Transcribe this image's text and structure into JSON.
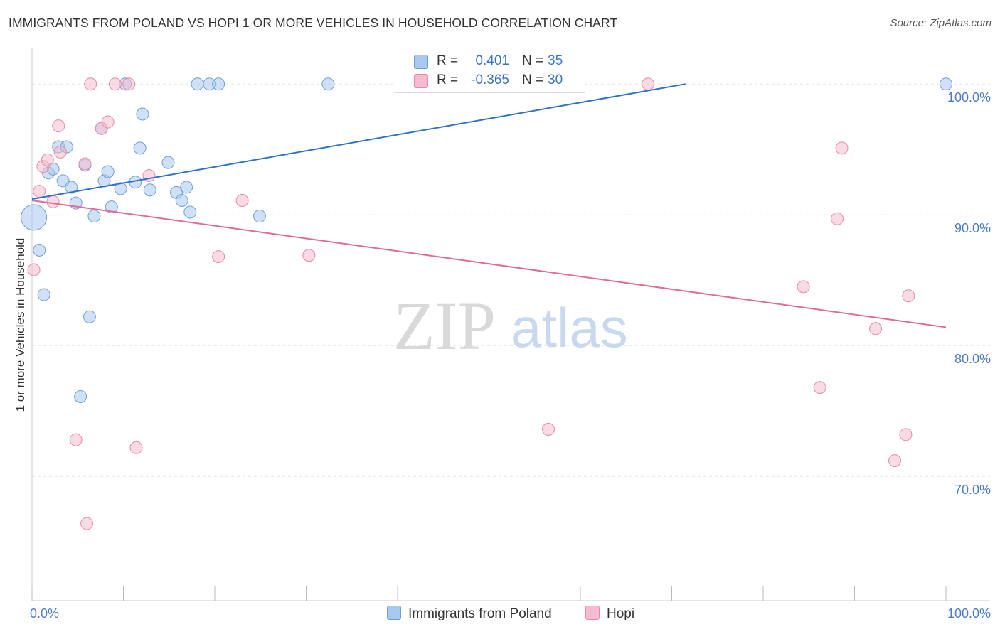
{
  "header": {
    "title": "IMMIGRANTS FROM POLAND VS HOPI 1 OR MORE VEHICLES IN HOUSEHOLD CORRELATION CHART",
    "source": "Source: ZipAtlas.com"
  },
  "legend": {
    "rows": [
      {
        "r_label": "R =",
        "r_value": "0.401",
        "n_label": "N =",
        "n_value": "35"
      },
      {
        "r_label": "R =",
        "r_value": "-0.365",
        "n_label": "N =",
        "n_value": "30"
      }
    ]
  },
  "bottom_legend": [
    "Immigrants from Poland",
    "Hopi"
  ],
  "watermark": {
    "part1": "ZIP",
    "part2": "atlas"
  },
  "colors": {
    "blue_fill": "#a9c8f0",
    "blue_stroke": "#6f9fd8",
    "blue_line": "#2f72c8",
    "pink_fill": "#f6bccd",
    "pink_stroke": "#e88aa7",
    "pink_line": "#e06b96",
    "grid": "#e4e4e4",
    "axis_label": "#4a7cc9"
  },
  "chart_data": {
    "type": "scatter",
    "title": "IMMIGRANTS FROM POLAND VS HOPI 1 OR MORE VEHICLES IN HOUSEHOLD CORRELATION CHART",
    "xlabel": "",
    "ylabel": "1 or more Vehicles in Household",
    "xlim": [
      0,
      100
    ],
    "ylim": [
      60.5,
      103
    ],
    "x_tick_labels": [
      "0.0%",
      "100.0%"
    ],
    "y_ticks": [
      70,
      80,
      90,
      100
    ],
    "y_tick_labels": [
      "70.0%",
      "80.0%",
      "90.0%",
      "100.0%"
    ],
    "grid": true,
    "legend_position": "top-center",
    "series": [
      {
        "name": "Immigrants from Poland",
        "r": 0.401,
        "n": 35,
        "trend": {
          "x0": 0,
          "y0": 91.2,
          "x1": 71.5,
          "y1": 100
        },
        "points": [
          {
            "x": 0.2,
            "y": 89.8,
            "size": "large"
          },
          {
            "x": 0.8,
            "y": 87.3
          },
          {
            "x": 1.3,
            "y": 83.9
          },
          {
            "x": 1.8,
            "y": 93.2
          },
          {
            "x": 2.3,
            "y": 93.5
          },
          {
            "x": 2.9,
            "y": 95.2
          },
          {
            "x": 3.4,
            "y": 92.6
          },
          {
            "x": 3.8,
            "y": 95.2
          },
          {
            "x": 4.3,
            "y": 92.1
          },
          {
            "x": 4.8,
            "y": 90.9
          },
          {
            "x": 5.3,
            "y": 76.1
          },
          {
            "x": 5.8,
            "y": 93.8
          },
          {
            "x": 6.3,
            "y": 82.2
          },
          {
            "x": 6.8,
            "y": 89.9
          },
          {
            "x": 7.6,
            "y": 96.6
          },
          {
            "x": 7.9,
            "y": 92.6
          },
          {
            "x": 8.3,
            "y": 93.3
          },
          {
            "x": 8.7,
            "y": 90.6
          },
          {
            "x": 9.7,
            "y": 92.0
          },
          {
            "x": 10.2,
            "y": 100.0
          },
          {
            "x": 11.3,
            "y": 92.5
          },
          {
            "x": 11.8,
            "y": 95.1
          },
          {
            "x": 12.1,
            "y": 97.7
          },
          {
            "x": 12.9,
            "y": 91.9
          },
          {
            "x": 14.9,
            "y": 94.0
          },
          {
            "x": 15.8,
            "y": 91.7
          },
          {
            "x": 16.4,
            "y": 91.1
          },
          {
            "x": 16.9,
            "y": 92.1
          },
          {
            "x": 17.3,
            "y": 90.2
          },
          {
            "x": 18.1,
            "y": 100.0
          },
          {
            "x": 19.4,
            "y": 100.0
          },
          {
            "x": 20.4,
            "y": 100.0
          },
          {
            "x": 24.9,
            "y": 89.9
          },
          {
            "x": 32.4,
            "y": 100.0
          },
          {
            "x": 100.0,
            "y": 100.0
          }
        ]
      },
      {
        "name": "Hopi",
        "r": -0.365,
        "n": 30,
        "trend": {
          "x0": 0,
          "y0": 91.1,
          "x1": 100,
          "y1": 81.4
        },
        "points": [
          {
            "x": 0.2,
            "y": 85.8
          },
          {
            "x": 0.8,
            "y": 91.8
          },
          {
            "x": 1.2,
            "y": 93.7
          },
          {
            "x": 1.7,
            "y": 94.2
          },
          {
            "x": 2.3,
            "y": 91.0
          },
          {
            "x": 2.9,
            "y": 96.8
          },
          {
            "x": 3.1,
            "y": 94.8
          },
          {
            "x": 4.8,
            "y": 72.8
          },
          {
            "x": 5.8,
            "y": 93.9
          },
          {
            "x": 6.0,
            "y": 66.4
          },
          {
            "x": 6.4,
            "y": 100.0
          },
          {
            "x": 7.6,
            "y": 96.6
          },
          {
            "x": 8.3,
            "y": 97.1
          },
          {
            "x": 9.1,
            "y": 100.0
          },
          {
            "x": 10.6,
            "y": 100.0
          },
          {
            "x": 11.4,
            "y": 72.2
          },
          {
            "x": 12.8,
            "y": 93.0
          },
          {
            "x": 20.4,
            "y": 86.8
          },
          {
            "x": 23.0,
            "y": 91.1
          },
          {
            "x": 30.3,
            "y": 86.9
          },
          {
            "x": 56.5,
            "y": 73.6
          },
          {
            "x": 67.4,
            "y": 100.0
          },
          {
            "x": 84.4,
            "y": 84.5
          },
          {
            "x": 86.2,
            "y": 76.8
          },
          {
            "x": 88.1,
            "y": 89.7
          },
          {
            "x": 88.6,
            "y": 95.1
          },
          {
            "x": 92.3,
            "y": 81.3
          },
          {
            "x": 94.4,
            "y": 71.2
          },
          {
            "x": 95.6,
            "y": 73.2
          },
          {
            "x": 95.9,
            "y": 83.8
          }
        ]
      }
    ]
  }
}
